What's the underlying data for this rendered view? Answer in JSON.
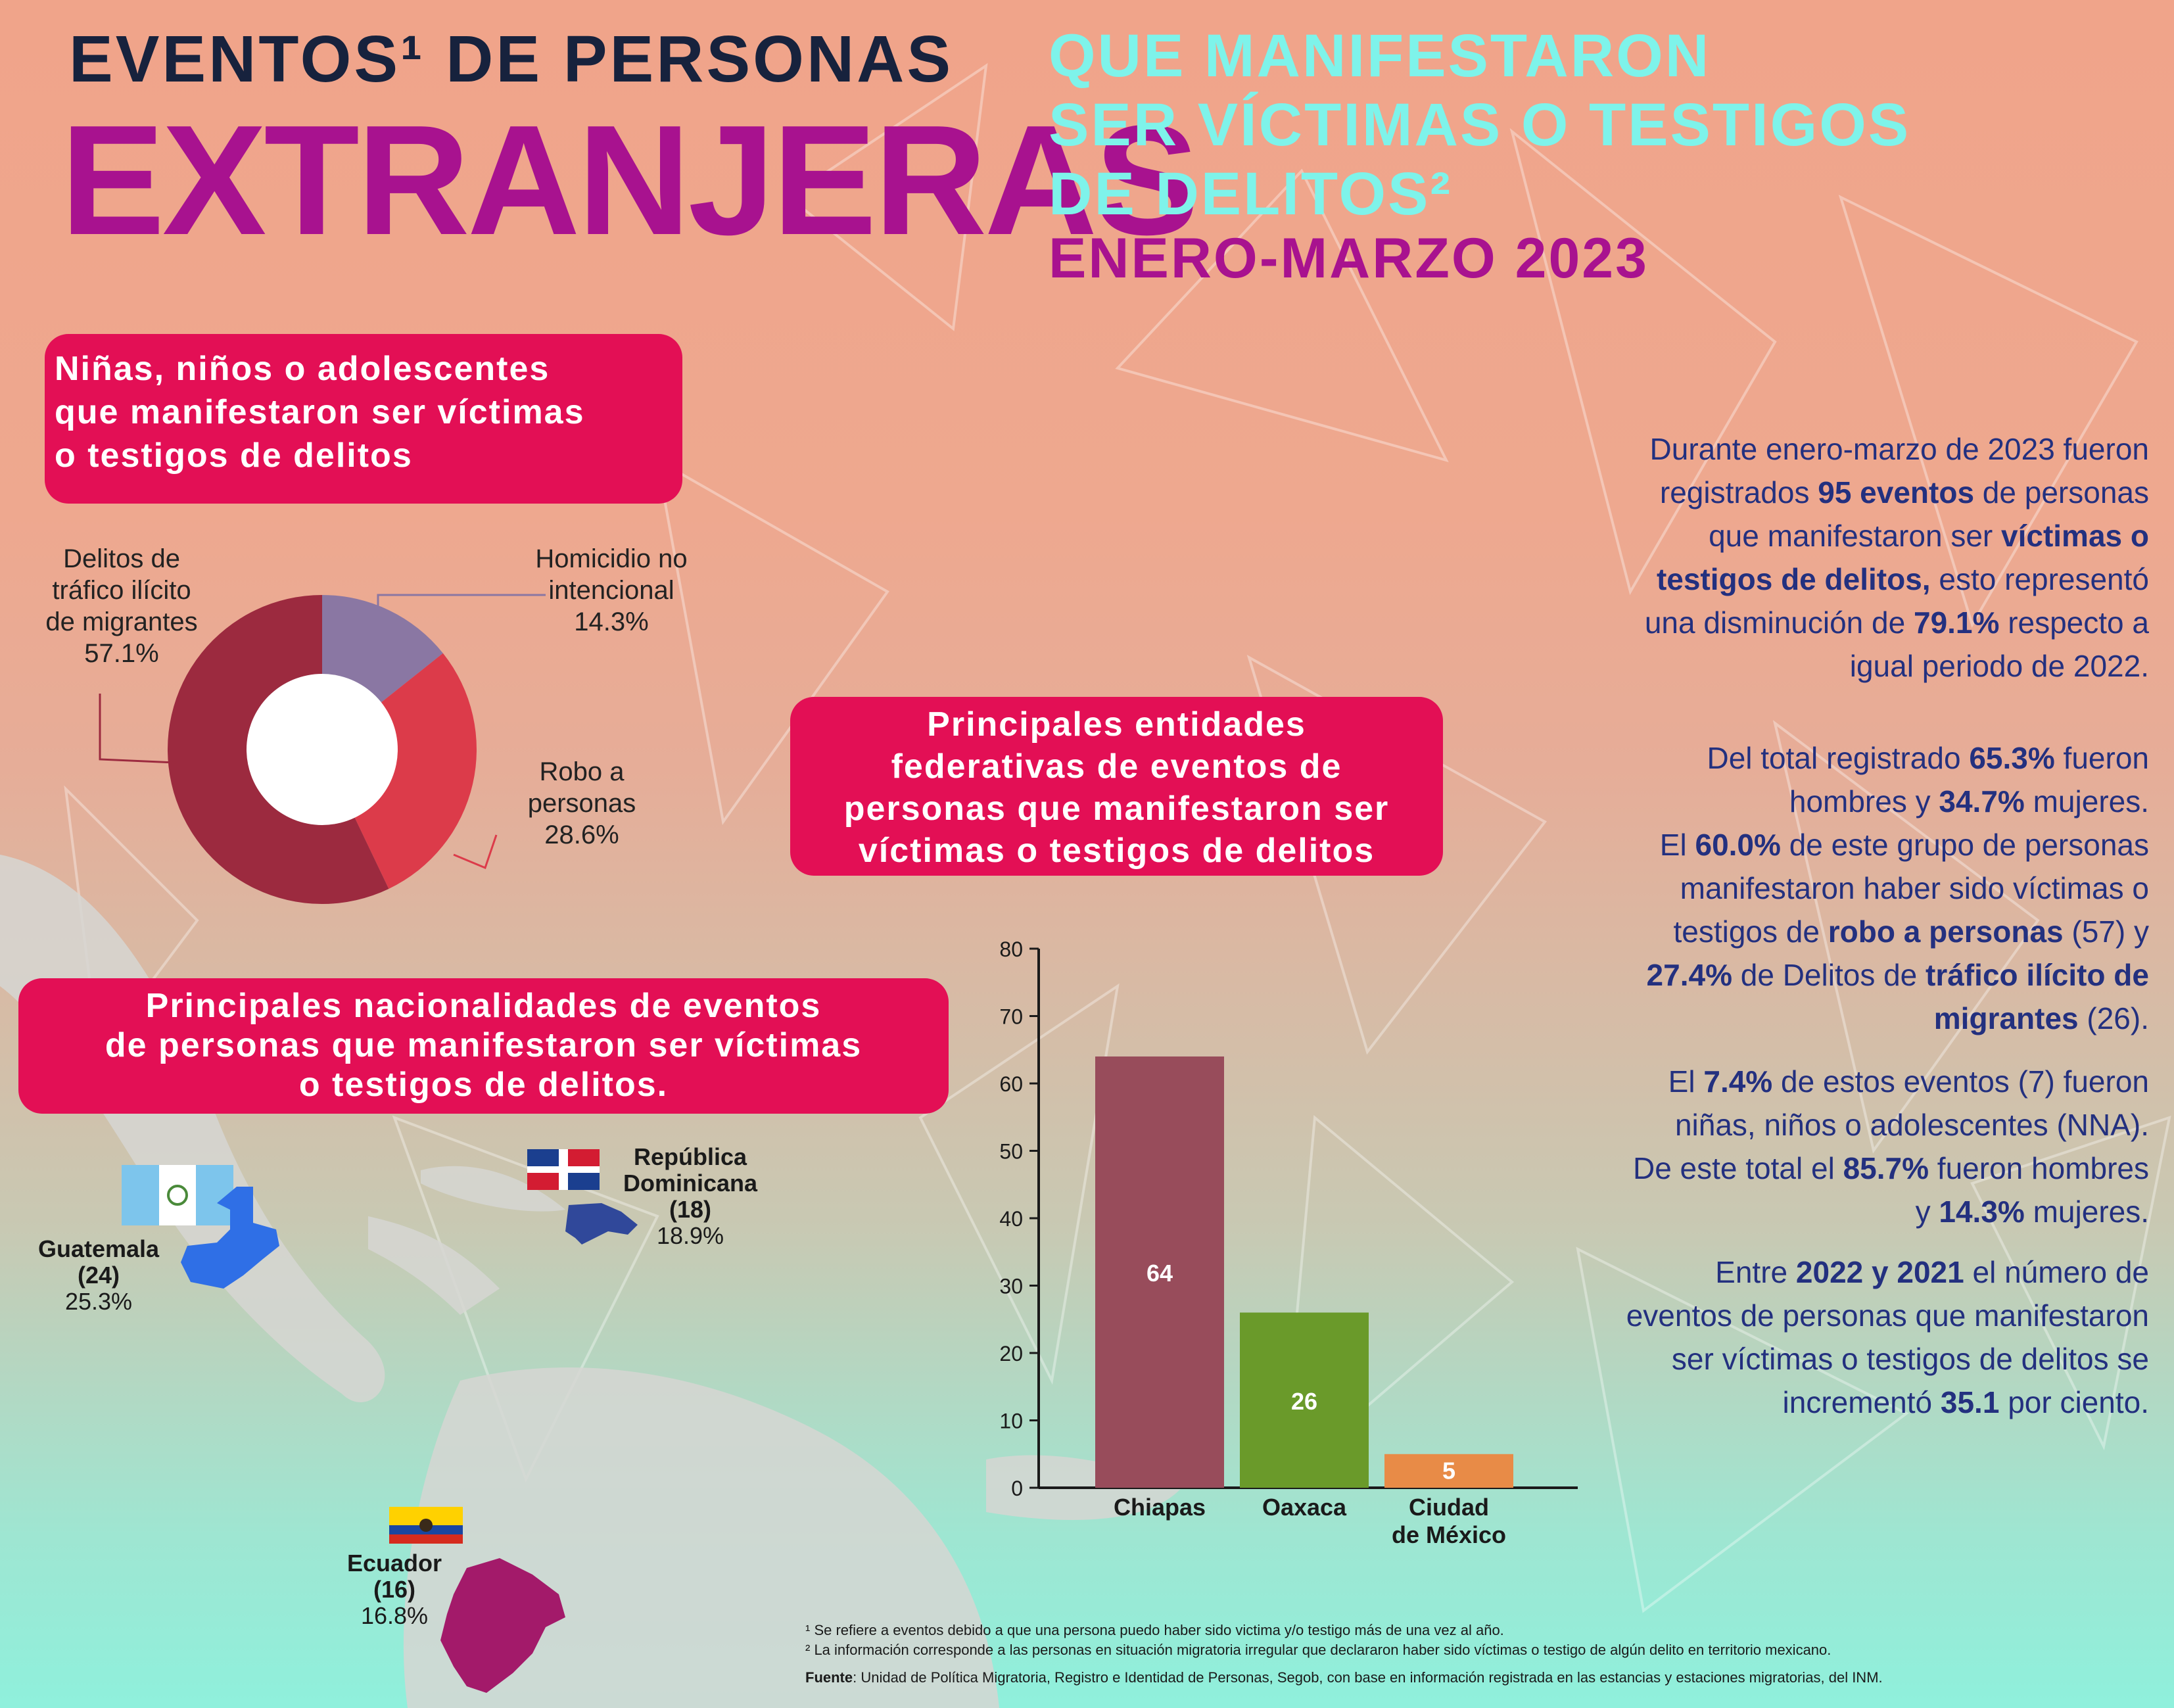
{
  "title": {
    "line1": "EVENTOS¹ DE PERSONAS",
    "line2": "EXTRANJERAS",
    "line3": "QUE MANIFESTARON",
    "line4": "SER VÍCTIMAS O TESTIGOS",
    "line5": "DE DELITOS²",
    "period": "ENERO-MARZO 2023"
  },
  "nna_box": {
    "lines": [
      "Niñas, niños o adolescentes",
      "que manifestaron ser víctimas",
      "o testigos de delitos"
    ]
  },
  "nationality_box": {
    "lines": [
      "Principales nacionalidades de eventos",
      "de personas que manifestaron ser víctimas",
      "o testigos de delitos."
    ]
  },
  "entities_box": {
    "lines": [
      "Principales entidades",
      "federativas de eventos de",
      "personas que manifestaron ser",
      "víctimas o testigos de delitos"
    ]
  },
  "pie_labels": {
    "trafico": [
      "Delitos de",
      "tráfico ilícito",
      "de migrantes",
      "57.1%"
    ],
    "homicidio": [
      "Homicidio no",
      "intencional",
      "14.3%"
    ],
    "robo": [
      "Robo a",
      "personas",
      "28.6%"
    ]
  },
  "nationalities": {
    "guatemala": {
      "name": "Guatemala",
      "count": "(24)",
      "pct": "25.3%"
    },
    "dominicana": {
      "name1": "República",
      "name2": "Dominicana",
      "count": "(18)",
      "pct": "18.9%"
    },
    "ecuador": {
      "name": "Ecuador",
      "count": "(16)",
      "pct": "16.8%"
    }
  },
  "paragraphs": {
    "p1": [
      "Durante enero-marzo de 2023  fueron",
      "registrados ",
      "95 eventos",
      " de personas",
      "que manifestaron ser ",
      "víctimas o",
      "testigos de delitos,",
      " esto representó",
      "una disminución de ",
      "79.1%",
      " respecto a",
      "igual periodo de 2022."
    ],
    "p2": [
      "Del total registrado ",
      "65.3%",
      " fueron",
      "hombres y ",
      "34.7%",
      " mujeres.",
      "El ",
      "60.0%",
      " de este grupo de personas",
      "manifestaron haber sido víctimas o",
      "testigos de ",
      "robo a personas",
      " (57) y",
      "27.4%",
      " de Delitos de ",
      "tráfico ilícito de",
      "migrantes",
      " (26)."
    ],
    "p3": [
      "El ",
      "7.4%",
      " de estos eventos (7) fueron",
      "niñas, niños o adolescentes (NNA).",
      "De este total el ",
      "85.7%",
      " fueron hombres",
      "y ",
      "14.3%",
      " mujeres."
    ],
    "p4": [
      "Entre ",
      "2022 y 2021",
      " el número de",
      "eventos de personas que manifestaron",
      "ser víctimas o testigos de delitos se",
      "incrementó ",
      "35.1",
      " por ciento."
    ]
  },
  "footnotes": {
    "f1": "¹ Se refiere a eventos debido a que una persona puedo haber sido victima y/o testigo más de una vez al año.",
    "f2": "² La información corresponde a las personas en situación migratoria irregular que declararon haber sido víctimas o testigo de algún delito en territorio mexicano.",
    "source_label": "Fuente",
    "source_text": ": Unidad de Política Migratoria, Registro e Identidad de Personas, Segob, con base en información registrada en las estancias y estaciones migratorias, del INM."
  },
  "colors": {
    "magenta": "#a8128f",
    "pink_box": "#e30f55",
    "cyan": "#7ef3ea",
    "navy": "#23307f"
  },
  "chart_data": [
    {
      "type": "pie",
      "categories": [
        "Delitos de tráfico ilícito de migrantes",
        "Homicidio no intencional",
        "Robo a personas"
      ],
      "values": [
        57.1,
        14.3,
        28.6
      ],
      "colors": [
        "#9c2a3f",
        "#8a77a3",
        "#dc3b4a"
      ]
    },
    {
      "type": "bar",
      "categories": [
        "Chiapas",
        "Oaxaca",
        "Ciudad de México"
      ],
      "values": [
        64,
        26,
        5
      ],
      "colors": [
        "#984c5b",
        "#6a9a2a",
        "#e88b47"
      ],
      "ylim": [
        0,
        80
      ],
      "yticks": [
        0,
        10,
        20,
        30,
        40,
        50,
        60,
        70,
        80
      ]
    }
  ]
}
